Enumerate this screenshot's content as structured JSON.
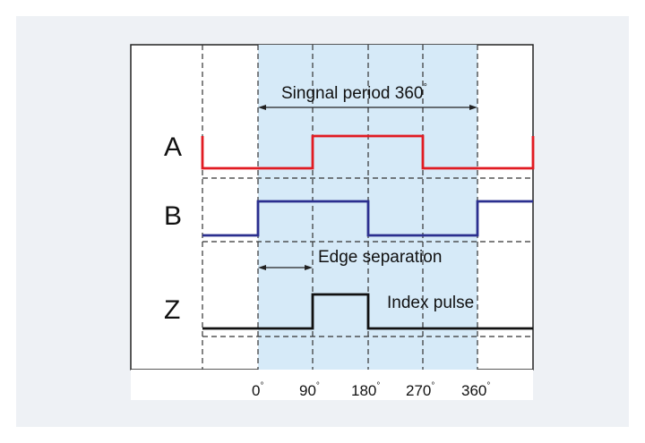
{
  "diagram": {
    "signals": [
      {
        "name": "A",
        "color": "#e11b22"
      },
      {
        "name": "B",
        "color": "#2b2f8f"
      },
      {
        "name": "Z",
        "color": "#111111"
      }
    ],
    "annotations": {
      "signal_period": "Singnal period 360",
      "edge_separation": "Edge separation",
      "index_pulse": "Index pulse"
    },
    "angle_ticks": [
      "0",
      "90",
      "180",
      "270",
      "360"
    ],
    "degree_symbol": "°",
    "highlight_color": "#d6eaf8"
  }
}
